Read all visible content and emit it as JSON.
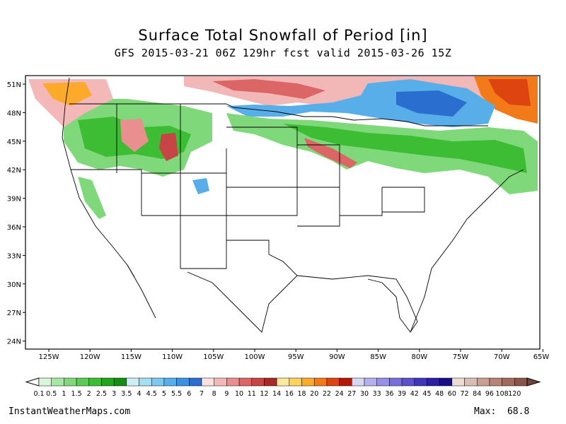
{
  "title": "Surface Total Snowfall of Period [in]",
  "subtitle": "GFS 2015-03-21 06Z 129hr fcst valid 2015-03-26 15Z",
  "footer": {
    "site": "InstantWeatherMaps.com",
    "max_label": "Max:",
    "max_value": "68.8"
  },
  "map": {
    "lat_labels": [
      "51N",
      "48N",
      "45N",
      "42N",
      "39N",
      "36N",
      "33N",
      "30N",
      "27N",
      "24N"
    ],
    "lon_labels": [
      "125W",
      "120W",
      "115W",
      "110W",
      "105W",
      "100W",
      "95W",
      "90W",
      "85W",
      "80W",
      "75W",
      "70W",
      "65W"
    ],
    "legend_labels": [
      "0.1",
      "0.5",
      "1",
      "1.5",
      "2",
      "2.5",
      "3",
      "3.5",
      "4",
      "4.5",
      "5",
      "5.5",
      "6",
      "7",
      "8",
      "9",
      "10",
      "11",
      "12",
      "14",
      "16",
      "18",
      "20",
      "22",
      "24",
      "27",
      "30",
      "33",
      "36",
      "39",
      "42",
      "45",
      "48",
      "60",
      "72",
      "84",
      "96",
      "108",
      "120"
    ],
    "legend_colors": [
      "#dbf5da",
      "#a7e7a4",
      "#7fd97b",
      "#5ccb55",
      "#3cbd34",
      "#22a51d",
      "#138d12",
      "#cdeef6",
      "#a3def3",
      "#7cc8ee",
      "#58aee8",
      "#3a92e0",
      "#2a6fcf",
      "#fbe1e1",
      "#f5b8b8",
      "#ea8f8f",
      "#dc6565",
      "#c84545",
      "#a62929",
      "#fde9a0",
      "#fdd35e",
      "#fbaa2c",
      "#f37a18",
      "#dd4410",
      "#b51708",
      "#d9d6f4",
      "#b6b1ee",
      "#9690e6",
      "#7770dc",
      "#5a53cc",
      "#4036b9",
      "#2c1fa3",
      "#1a0d88",
      "#eddbd5",
      "#dcbdb4",
      "#c99f93",
      "#b58377",
      "#a06b5e",
      "#8a5548"
    ]
  }
}
